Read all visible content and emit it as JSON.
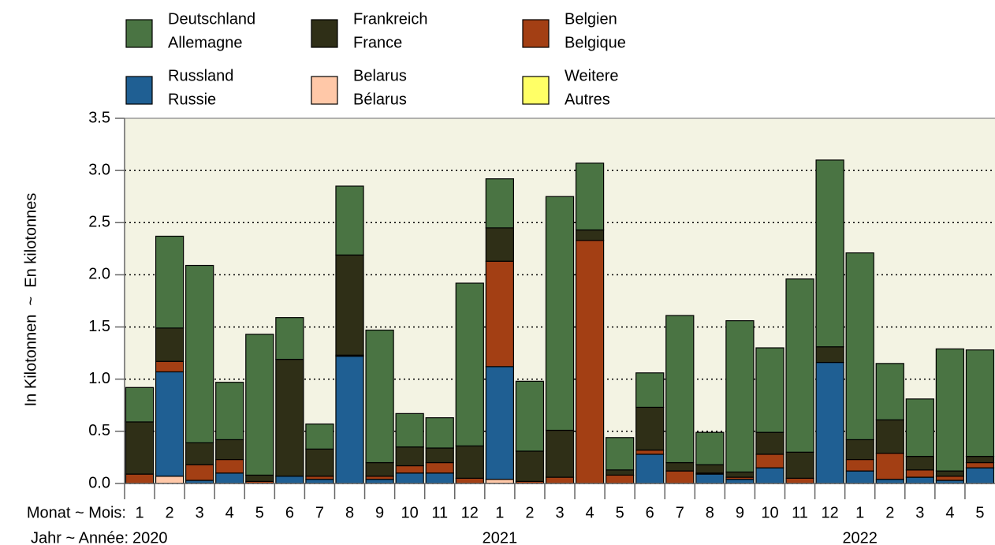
{
  "chart_data": {
    "type": "stacked_bar",
    "y_axis_label": "In Kilotonnen  ~  En kilotonnes",
    "x_axis_label_month": "Monat ~ Mois:",
    "x_axis_label_year": "Jahr ~ Année:",
    "categories": [
      "1",
      "2",
      "3",
      "4",
      "5",
      "6",
      "7",
      "8",
      "9",
      "10",
      "11",
      "12",
      "1",
      "2",
      "3",
      "4",
      "5",
      "6",
      "7",
      "8",
      "9",
      "10",
      "11",
      "12",
      "1",
      "2",
      "3",
      "4",
      "5"
    ],
    "year_labels": [
      "2020",
      null,
      null,
      null,
      null,
      null,
      null,
      null,
      null,
      null,
      null,
      null,
      "2021",
      null,
      null,
      null,
      null,
      null,
      null,
      null,
      null,
      null,
      null,
      null,
      "2022",
      null,
      null,
      null,
      null
    ],
    "series": [
      {
        "name": [
          "Deutschland",
          "Allemagne"
        ],
        "color": "#4a7443",
        "values": [
          0.33,
          0.88,
          1.7,
          0.55,
          1.35,
          0.4,
          0.24,
          0.66,
          1.27,
          0.32,
          0.29,
          1.56,
          0.47,
          0.67,
          2.24,
          0.64,
          0.31,
          0.33,
          1.41,
          0.31,
          1.45,
          0.81,
          1.66,
          1.79,
          1.79,
          0.54,
          0.55,
          1.17,
          1.02
        ]
      },
      {
        "name": [
          "Frankreich",
          "France"
        ],
        "color": "#2f2f17",
        "values": [
          0.5,
          0.32,
          0.21,
          0.19,
          0.06,
          1.12,
          0.26,
          0.96,
          0.13,
          0.18,
          0.14,
          0.31,
          0.32,
          0.29,
          0.45,
          0.1,
          0.05,
          0.41,
          0.08,
          0.08,
          0.05,
          0.21,
          0.25,
          0.15,
          0.19,
          0.32,
          0.13,
          0.05,
          0.06
        ]
      },
      {
        "name": [
          "Belgien",
          "Belgique"
        ],
        "color": "#a33f14",
        "values": [
          0.09,
          0.1,
          0.15,
          0.13,
          0.02,
          0,
          0.03,
          0.01,
          0.03,
          0.07,
          0.1,
          0.05,
          1.01,
          0.02,
          0.06,
          2.33,
          0.08,
          0.04,
          0.12,
          0.01,
          0.02,
          0.13,
          0.05,
          0,
          0.11,
          0.25,
          0.07,
          0.04,
          0.05
        ]
      },
      {
        "name": [
          "Russland",
          "Russie"
        ],
        "color": "#1f5f93",
        "values": [
          0,
          1.0,
          0.03,
          0.1,
          0,
          0.07,
          0.04,
          1.22,
          0.04,
          0.1,
          0.1,
          0,
          1.08,
          0,
          0,
          0,
          0,
          0.28,
          0,
          0.09,
          0.04,
          0.15,
          0,
          1.16,
          0.12,
          0.04,
          0.06,
          0.03,
          0.15
        ]
      },
      {
        "name": [
          "Belarus",
          "Bélarus"
        ],
        "color": "#ffc8a8",
        "values": [
          0,
          0.07,
          0,
          0,
          0,
          0,
          0,
          0,
          0,
          0,
          0,
          0,
          0.04,
          0,
          0,
          0,
          0,
          0,
          0,
          0,
          0,
          0,
          0,
          0,
          0,
          0,
          0,
          0,
          0
        ]
      },
      {
        "name": [
          "Weitere",
          "Autres"
        ],
        "color": "#ffff66",
        "values": [
          0,
          0,
          0,
          0,
          0,
          0,
          0,
          0,
          0,
          0,
          0,
          0,
          0,
          0,
          0,
          0,
          0,
          0,
          0,
          0,
          0,
          0,
          0,
          0,
          0,
          0,
          0,
          0,
          0
        ]
      }
    ],
    "ylim": [
      0,
      3.5
    ],
    "yticks": [
      {
        "value": 0,
        "label": "0.0"
      },
      0.5,
      {
        "value": 1,
        "label": "1.0"
      },
      1.5,
      {
        "value": 2,
        "label": "2.0"
      },
      2.5,
      {
        "value": 3,
        "label": "3.0"
      },
      3.5
    ],
    "grid": true,
    "plot_background": "#f3f3e3"
  }
}
